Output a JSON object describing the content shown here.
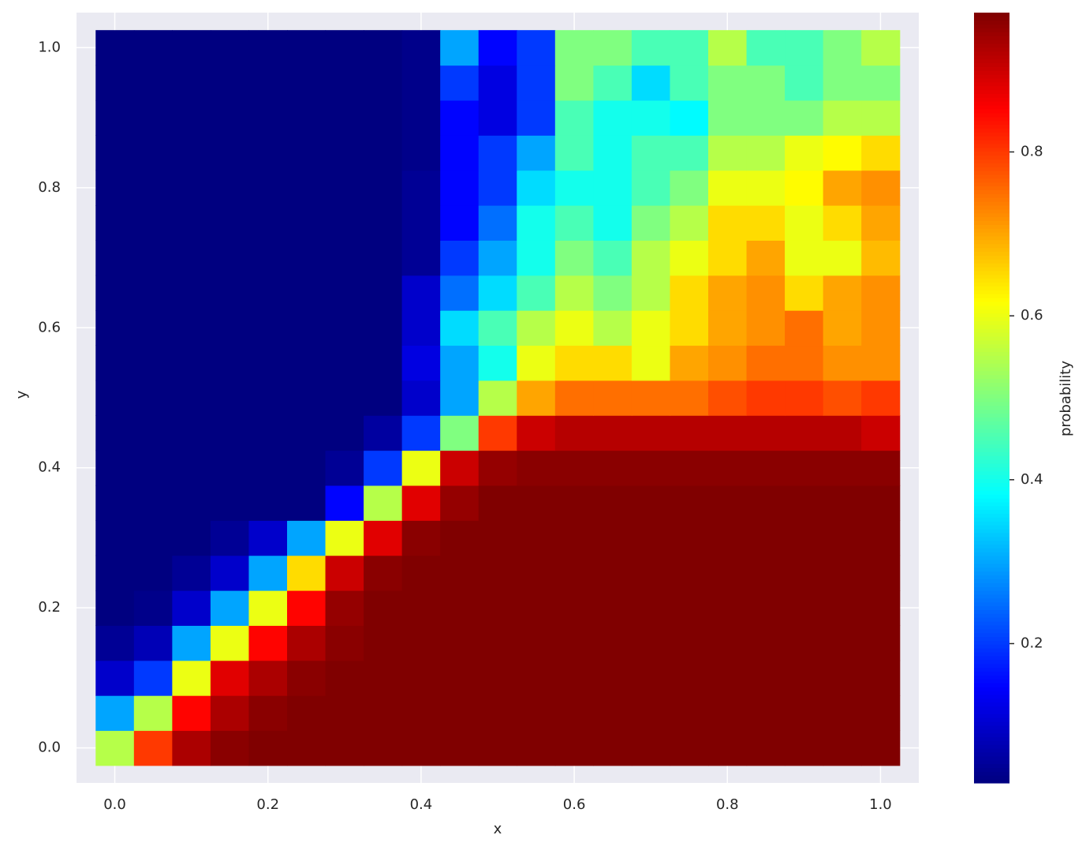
{
  "chart_data": {
    "type": "heatmap",
    "xlabel": "x",
    "ylabel": "y",
    "colorbar_label": "probability",
    "colormap": "jet",
    "grid": true,
    "xlim": [
      -0.05,
      1.05
    ],
    "ylim": [
      -0.05,
      1.05
    ],
    "clim": [
      0.03,
      0.97
    ],
    "xticks": [
      {
        "value": 0,
        "label": "0.0"
      },
      0.2,
      0.4,
      0.6,
      0.8,
      {
        "value": 1,
        "label": "1.0"
      }
    ],
    "yticks": [
      {
        "value": 0,
        "label": "0.0"
      },
      0.2,
      0.4,
      0.6,
      0.8,
      {
        "value": 1,
        "label": "1.0"
      }
    ],
    "cbar_ticks": [
      0.2,
      0.4,
      0.6,
      0.8
    ],
    "x": [
      0,
      0.05,
      0.1,
      0.15,
      0.2,
      0.25,
      0.3,
      0.35,
      0.4,
      0.45,
      0.5,
      0.55,
      0.6,
      0.65,
      0.7,
      0.75,
      0.8,
      0.85,
      0.9,
      0.95,
      1
    ],
    "y": [
      0,
      0.05,
      0.1,
      0.15,
      0.2,
      0.25,
      0.3,
      0.35,
      0.4,
      0.45,
      0.5,
      0.55,
      0.6,
      0.65,
      0.7,
      0.75,
      0.8,
      0.85,
      0.9,
      0.95,
      1
    ],
    "z": [
      [
        0.55,
        0.8,
        0.93,
        0.96,
        0.97,
        0.97,
        0.97,
        0.97,
        0.97,
        0.97,
        0.97,
        0.97,
        0.97,
        0.97,
        0.97,
        0.97,
        0.97,
        0.97,
        0.97,
        0.97,
        0.97
      ],
      [
        0.3,
        0.55,
        0.85,
        0.93,
        0.96,
        0.97,
        0.97,
        0.97,
        0.97,
        0.97,
        0.97,
        0.97,
        0.97,
        0.97,
        0.97,
        0.97,
        0.97,
        0.97,
        0.97,
        0.97,
        0.97
      ],
      [
        0.1,
        0.2,
        0.6,
        0.88,
        0.93,
        0.96,
        0.97,
        0.97,
        0.97,
        0.97,
        0.97,
        0.97,
        0.97,
        0.97,
        0.97,
        0.97,
        0.97,
        0.97,
        0.97,
        0.97,
        0.97
      ],
      [
        0.05,
        0.08,
        0.3,
        0.6,
        0.85,
        0.93,
        0.96,
        0.97,
        0.97,
        0.97,
        0.97,
        0.97,
        0.97,
        0.97,
        0.97,
        0.97,
        0.97,
        0.97,
        0.97,
        0.97,
        0.97
      ],
      [
        0.03,
        0.04,
        0.1,
        0.3,
        0.6,
        0.85,
        0.95,
        0.97,
        0.97,
        0.97,
        0.97,
        0.97,
        0.97,
        0.97,
        0.97,
        0.97,
        0.97,
        0.97,
        0.97,
        0.97,
        0.97
      ],
      [
        0.03,
        0.03,
        0.05,
        0.1,
        0.3,
        0.65,
        0.9,
        0.96,
        0.97,
        0.97,
        0.97,
        0.97,
        0.97,
        0.97,
        0.97,
        0.97,
        0.97,
        0.97,
        0.97,
        0.97,
        0.97
      ],
      [
        0.03,
        0.03,
        0.03,
        0.05,
        0.1,
        0.3,
        0.6,
        0.88,
        0.96,
        0.97,
        0.97,
        0.97,
        0.97,
        0.97,
        0.97,
        0.97,
        0.97,
        0.97,
        0.97,
        0.97,
        0.97
      ],
      [
        0.03,
        0.03,
        0.03,
        0.03,
        0.03,
        0.03,
        0.15,
        0.55,
        0.88,
        0.95,
        0.97,
        0.97,
        0.97,
        0.97,
        0.97,
        0.97,
        0.97,
        0.97,
        0.97,
        0.97,
        0.97
      ],
      [
        0.03,
        0.03,
        0.03,
        0.03,
        0.03,
        0.03,
        0.05,
        0.2,
        0.6,
        0.9,
        0.95,
        0.96,
        0.96,
        0.96,
        0.96,
        0.96,
        0.96,
        0.96,
        0.96,
        0.96,
        0.96
      ],
      [
        0.03,
        0.03,
        0.03,
        0.03,
        0.03,
        0.03,
        0.03,
        0.06,
        0.2,
        0.5,
        0.8,
        0.9,
        0.92,
        0.92,
        0.92,
        0.92,
        0.92,
        0.92,
        0.92,
        0.92,
        0.9
      ],
      [
        0.03,
        0.03,
        0.03,
        0.03,
        0.03,
        0.03,
        0.03,
        0.03,
        0.1,
        0.3,
        0.55,
        0.7,
        0.75,
        0.75,
        0.75,
        0.75,
        0.78,
        0.8,
        0.8,
        0.78,
        0.8
      ],
      [
        0.03,
        0.03,
        0.03,
        0.03,
        0.03,
        0.03,
        0.03,
        0.03,
        0.12,
        0.3,
        0.4,
        0.6,
        0.65,
        0.65,
        0.6,
        0.7,
        0.72,
        0.75,
        0.75,
        0.72,
        0.72
      ],
      [
        0.03,
        0.03,
        0.03,
        0.03,
        0.03,
        0.03,
        0.03,
        0.03,
        0.1,
        0.35,
        0.45,
        0.55,
        0.6,
        0.55,
        0.6,
        0.65,
        0.7,
        0.72,
        0.75,
        0.7,
        0.72
      ],
      [
        0.03,
        0.03,
        0.03,
        0.03,
        0.03,
        0.03,
        0.03,
        0.03,
        0.1,
        0.25,
        0.35,
        0.45,
        0.55,
        0.5,
        0.55,
        0.65,
        0.7,
        0.72,
        0.65,
        0.7,
        0.72
      ],
      [
        0.03,
        0.03,
        0.03,
        0.03,
        0.03,
        0.03,
        0.03,
        0.03,
        0.05,
        0.2,
        0.3,
        0.4,
        0.5,
        0.45,
        0.55,
        0.6,
        0.65,
        0.7,
        0.6,
        0.6,
        0.68
      ],
      [
        0.03,
        0.03,
        0.03,
        0.03,
        0.03,
        0.03,
        0.03,
        0.03,
        0.05,
        0.15,
        0.25,
        0.4,
        0.45,
        0.4,
        0.5,
        0.55,
        0.65,
        0.65,
        0.6,
        0.65,
        0.7
      ],
      [
        0.03,
        0.03,
        0.03,
        0.03,
        0.03,
        0.03,
        0.03,
        0.03,
        0.05,
        0.15,
        0.2,
        0.35,
        0.4,
        0.4,
        0.45,
        0.5,
        0.6,
        0.6,
        0.62,
        0.7,
        0.72
      ],
      [
        0.03,
        0.03,
        0.03,
        0.03,
        0.03,
        0.03,
        0.03,
        0.03,
        0.04,
        0.15,
        0.2,
        0.3,
        0.45,
        0.4,
        0.45,
        0.45,
        0.55,
        0.55,
        0.6,
        0.62,
        0.65
      ],
      [
        0.03,
        0.03,
        0.03,
        0.03,
        0.03,
        0.03,
        0.03,
        0.03,
        0.04,
        0.15,
        0.12,
        0.2,
        0.45,
        0.4,
        0.4,
        0.38,
        0.5,
        0.5,
        0.5,
        0.55,
        0.55
      ],
      [
        0.03,
        0.03,
        0.03,
        0.03,
        0.03,
        0.03,
        0.03,
        0.03,
        0.04,
        0.2,
        0.12,
        0.2,
        0.5,
        0.45,
        0.35,
        0.45,
        0.5,
        0.5,
        0.45,
        0.5,
        0.5
      ],
      [
        0.03,
        0.03,
        0.03,
        0.03,
        0.03,
        0.03,
        0.03,
        0.03,
        0.04,
        0.3,
        0.15,
        0.2,
        0.5,
        0.5,
        0.45,
        0.45,
        0.55,
        0.45,
        0.45,
        0.5,
        0.55
      ]
    ]
  }
}
